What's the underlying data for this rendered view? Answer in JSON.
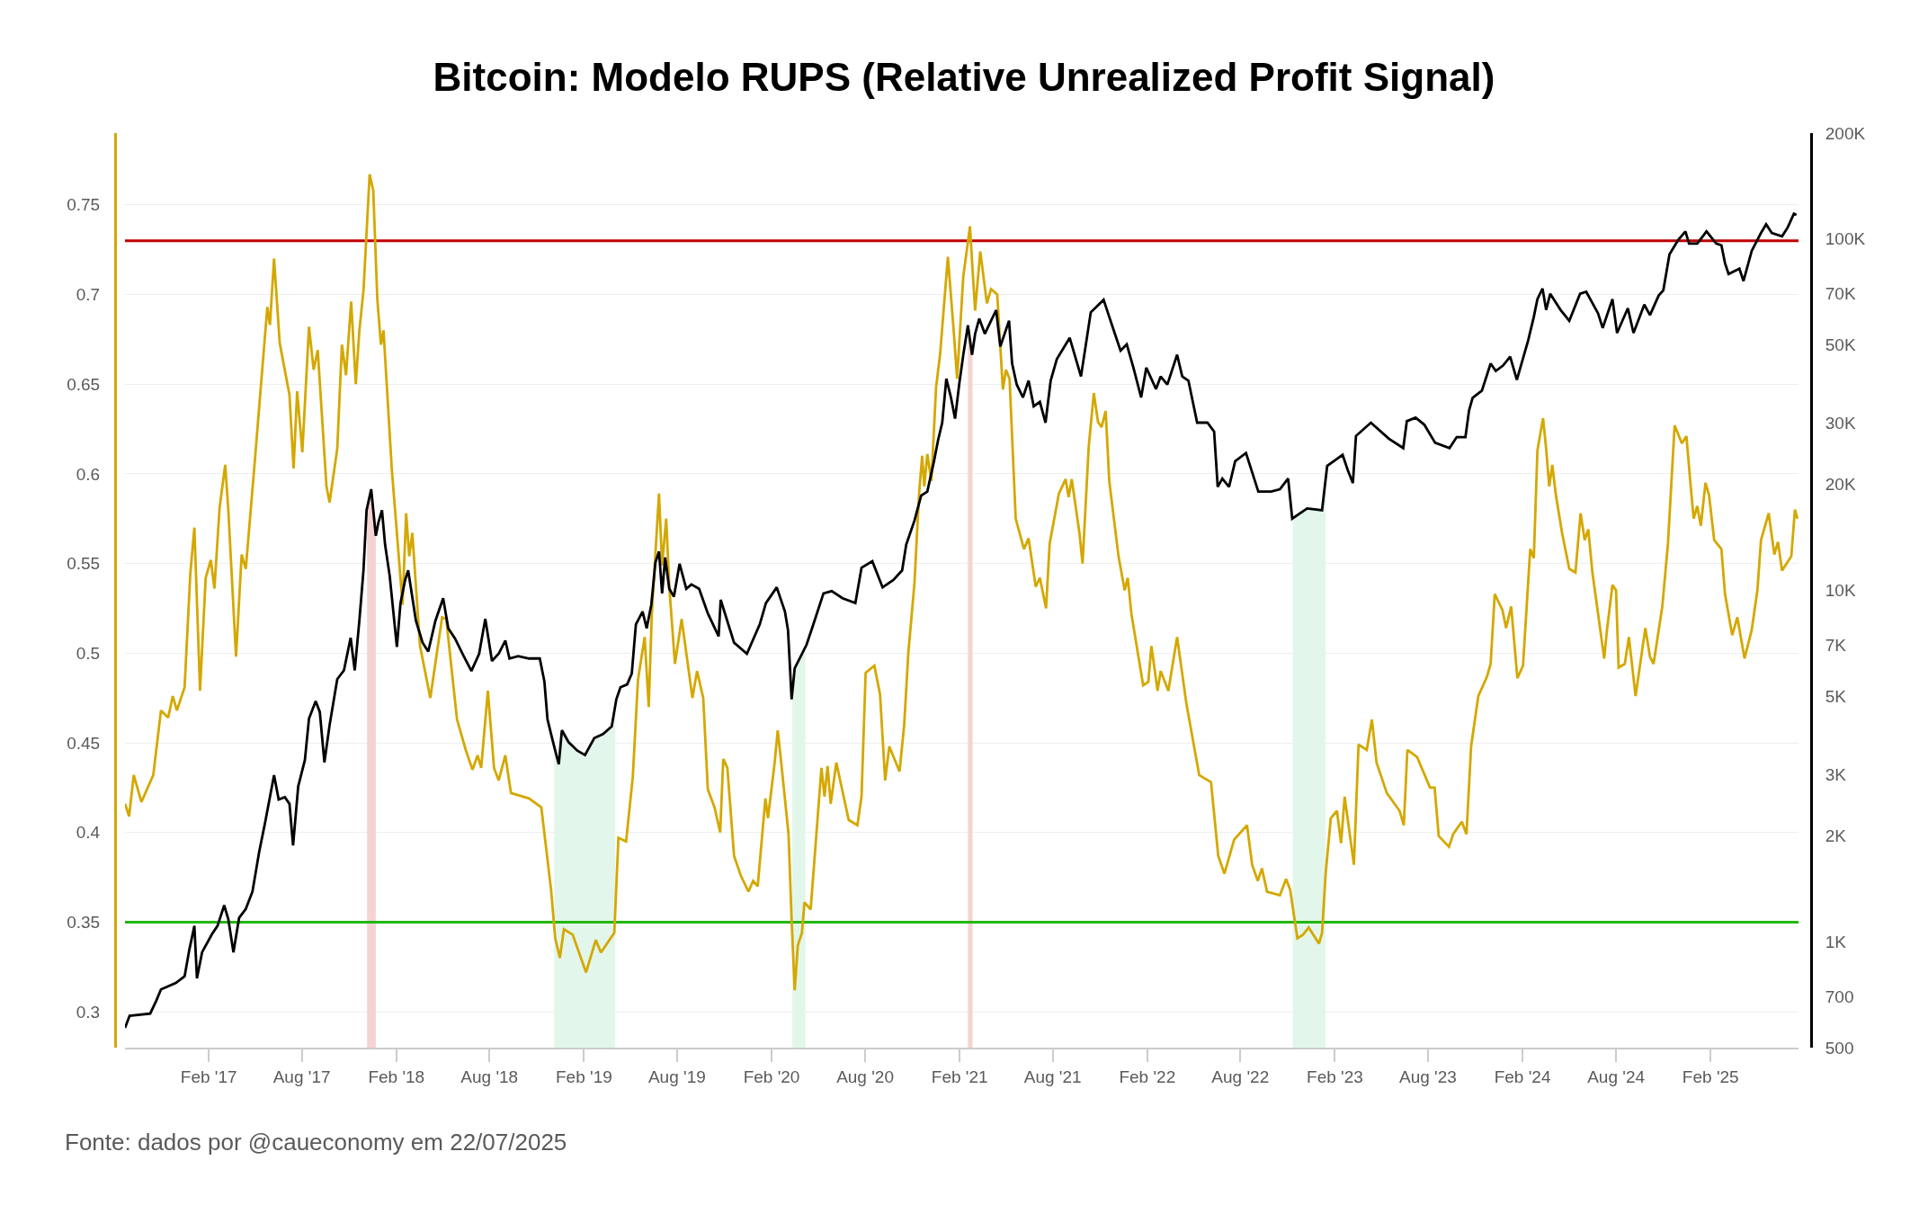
{
  "chart_data": {
    "type": "line",
    "title": "Bitcoin: Modelo RUPS (Relative Unrealized Profit Signal)",
    "annotations": [
      "Fonte: dados por @caueconomy em 22/07/2025"
    ],
    "xlim": [
      "2016-08-22",
      "2025-07-22"
    ],
    "xticks": [
      {
        "value": "2017-02-01",
        "label": "Feb '17"
      },
      {
        "value": "2017-08-01",
        "label": "Aug '17"
      },
      {
        "value": "2018-02-01",
        "label": "Feb '18"
      },
      {
        "value": "2018-08-01",
        "label": "Aug '18"
      },
      {
        "value": "2019-02-01",
        "label": "Feb '19"
      },
      {
        "value": "2019-08-01",
        "label": "Aug '19"
      },
      {
        "value": "2020-02-01",
        "label": "Feb '20"
      },
      {
        "value": "2020-08-01",
        "label": "Aug '20"
      },
      {
        "value": "2021-02-01",
        "label": "Feb '21"
      },
      {
        "value": "2021-08-01",
        "label": "Aug '21"
      },
      {
        "value": "2022-02-01",
        "label": "Feb '22"
      },
      {
        "value": "2022-08-01",
        "label": "Aug '22"
      },
      {
        "value": "2023-02-01",
        "label": "Feb '23"
      },
      {
        "value": "2023-08-01",
        "label": "Aug '23"
      },
      {
        "value": "2024-02-01",
        "label": "Feb '24"
      },
      {
        "value": "2024-08-01",
        "label": "Aug '24"
      },
      {
        "value": "2025-02-01",
        "label": "Feb '25"
      }
    ],
    "ylim": [
      0.28,
      0.79
    ],
    "yticks": [
      0.3,
      0.35,
      0.4,
      0.45,
      0.5,
      0.55,
      0.6,
      0.65,
      0.7,
      0.75
    ],
    "y2lim": [
      500,
      200000
    ],
    "y2ticks": [
      500,
      700,
      {
        "value": 1000,
        "label": "1K"
      },
      {
        "value": 2000,
        "label": "2K"
      },
      {
        "value": 3000,
        "label": "3K"
      },
      {
        "value": 5000,
        "label": "5K"
      },
      {
        "value": 7000,
        "label": "7K"
      },
      {
        "value": 10000,
        "label": "10K"
      },
      {
        "value": 20000,
        "label": "20K"
      },
      {
        "value": 30000,
        "label": "30K"
      },
      {
        "value": 50000,
        "label": "50K"
      },
      {
        "value": 70000,
        "label": "70K"
      },
      {
        "value": 100000,
        "label": "100K"
      },
      {
        "value": 200000,
        "label": "200K"
      }
    ],
    "log": "y2",
    "grid": "y",
    "ref_lines": [
      {
        "axis": "y",
        "value": 0.73,
        "color": "#c00000"
      },
      {
        "axis": "y",
        "value": 0.35,
        "color": "#22b80a"
      }
    ],
    "bands": [
      {
        "axis": "x",
        "from": "2017-12-06",
        "to": "2017-12-23",
        "color": "#f6d3d3"
      },
      {
        "axis": "x",
        "from": "2018-12-05",
        "to": "2019-04-03",
        "color": "#e3f6eb"
      },
      {
        "axis": "x",
        "from": "2020-03-12",
        "to": "2020-04-07",
        "color": "#e3f6eb"
      },
      {
        "axis": "x",
        "from": "2021-02-17",
        "to": "2021-02-26",
        "color": "#f6d3d3"
      },
      {
        "axis": "x",
        "from": "2022-11-11",
        "to": "2023-01-14",
        "color": "#e3f6eb"
      }
    ],
    "series": [
      {
        "color": "#d4a800",
        "x": [
          "2016-08-22",
          "2016-08-30",
          "2016-09-08",
          "2016-09-23",
          "2016-10-16",
          "2016-10-31",
          "2016-11-14",
          "2016-11-23",
          "2016-12-01",
          "2016-12-16",
          "2016-12-27",
          "2017-01-04",
          "2017-01-15",
          "2017-01-26",
          "2017-02-05",
          "2017-02-12",
          "2017-02-22",
          "2017-03-05",
          "2017-03-11",
          "2017-03-26",
          "2017-04-06",
          "2017-04-14",
          "2017-05-01",
          "2017-05-14",
          "2017-05-26",
          "2017-05-31",
          "2017-06-08",
          "2017-06-19",
          "2017-07-08",
          "2017-07-16",
          "2017-07-23",
          "2017-08-02",
          "2017-08-15",
          "2017-08-24",
          "2017-09-01",
          "2017-09-18",
          "2017-09-24",
          "2017-10-09",
          "2017-10-18",
          "2017-10-26",
          "2017-11-05",
          "2017-11-14",
          "2017-11-21",
          "2017-11-29",
          "2017-12-11",
          "2017-12-18",
          "2017-12-26",
          "2018-01-02",
          "2018-01-07",
          "2018-01-23",
          "2018-02-07",
          "2018-02-13",
          "2018-02-20",
          "2018-02-26",
          "2018-03-04",
          "2018-03-19",
          "2018-04-08",
          "2018-05-01",
          "2018-05-09",
          "2018-05-30",
          "2018-06-16",
          "2018-06-29",
          "2018-07-09",
          "2018-07-16",
          "2018-07-29",
          "2018-08-10",
          "2018-08-19",
          "2018-09-01",
          "2018-09-12",
          "2018-10-17",
          "2018-11-10",
          "2018-11-29",
          "2018-12-07",
          "2018-12-16",
          "2018-12-24",
          "2019-01-10",
          "2019-02-05",
          "2019-02-24",
          "2019-03-06",
          "2019-04-01",
          "2019-04-09",
          "2019-04-24",
          "2019-05-07",
          "2019-05-17",
          "2019-05-30",
          "2019-06-07",
          "2019-06-13",
          "2019-06-27",
          "2019-07-03",
          "2019-07-11",
          "2019-07-17",
          "2019-07-28",
          "2019-08-10",
          "2019-08-31",
          "2019-09-09",
          "2019-09-21",
          "2019-09-30",
          "2019-10-13",
          "2019-10-24",
          "2019-10-30",
          "2019-11-07",
          "2019-11-20",
          "2019-12-03",
          "2019-12-18",
          "2019-12-27",
          "2020-01-05",
          "2020-01-20",
          "2020-01-25",
          "2020-02-07",
          "2020-02-13",
          "2020-02-19",
          "2020-03-05",
          "2020-03-11",
          "2020-03-17",
          "2020-03-23",
          "2020-03-31",
          "2020-04-05",
          "2020-04-17",
          "2020-04-25",
          "2020-05-08",
          "2020-05-14",
          "2020-05-20",
          "2020-05-26",
          "2020-06-06",
          "2020-06-30",
          "2020-07-17",
          "2020-07-25",
          "2020-08-02",
          "2020-08-19",
          "2020-08-30",
          "2020-09-09",
          "2020-09-17",
          "2020-10-07",
          "2020-10-16",
          "2020-10-24",
          "2020-11-05",
          "2020-11-14",
          "2020-11-20",
          "2020-11-24",
          "2020-11-30",
          "2020-12-08",
          "2020-12-17",
          "2020-12-25",
          "2021-01-09",
          "2021-01-20",
          "2021-01-27",
          "2021-02-08",
          "2021-02-21",
          "2021-02-26",
          "2021-03-03",
          "2021-03-13",
          "2021-03-26",
          "2021-04-03",
          "2021-04-15",
          "2021-04-26",
          "2021-05-02",
          "2021-05-09",
          "2021-05-21",
          "2021-06-06",
          "2021-06-15",
          "2021-06-29",
          "2021-07-07",
          "2021-07-19",
          "2021-07-26",
          "2021-08-13",
          "2021-08-26",
          "2021-09-01",
          "2021-09-07",
          "2021-09-22",
          "2021-09-28",
          "2021-10-10",
          "2021-10-20",
          "2021-10-28",
          "2021-11-04",
          "2021-11-12",
          "2021-11-19",
          "2021-12-07",
          "2021-12-19",
          "2021-12-25",
          "2022-01-01",
          "2022-01-24",
          "2022-02-03",
          "2022-02-09",
          "2022-02-21",
          "2022-02-27",
          "2022-03-14",
          "2022-03-31",
          "2022-04-18",
          "2022-05-13",
          "2022-06-05",
          "2022-06-19",
          "2022-07-01",
          "2022-07-20",
          "2022-08-14",
          "2022-08-24",
          "2022-09-04",
          "2022-09-12",
          "2022-09-22",
          "2022-10-17",
          "2022-10-29",
          "2022-11-06",
          "2022-11-20",
          "2022-12-01",
          "2022-12-12",
          "2023-01-01",
          "2023-01-07",
          "2023-01-14",
          "2023-01-24",
          "2023-02-05",
          "2023-02-13",
          "2023-02-20",
          "2023-03-10",
          "2023-03-19",
          "2023-04-04",
          "2023-04-14",
          "2023-04-23",
          "2023-05-13",
          "2023-06-07",
          "2023-06-15",
          "2023-06-22",
          "2023-07-11",
          "2023-08-05",
          "2023-08-14",
          "2023-08-22",
          "2023-09-11",
          "2023-09-19",
          "2023-10-06",
          "2023-10-15",
          "2023-10-24",
          "2023-11-07",
          "2023-11-24",
          "2023-12-01",
          "2023-12-09",
          "2023-12-24",
          "2023-12-31",
          "2024-01-10",
          "2024-01-22",
          "2024-02-02",
          "2024-02-16",
          "2024-02-23",
          "2024-03-01",
          "2024-03-12",
          "2024-03-18",
          "2024-03-24",
          "2024-03-30",
          "2024-04-06",
          "2024-04-18",
          "2024-05-02",
          "2024-05-14",
          "2024-05-24",
          "2024-06-01",
          "2024-06-08",
          "2024-06-16",
          "2024-07-09",
          "2024-07-14",
          "2024-07-25",
          "2024-08-01",
          "2024-08-06",
          "2024-08-18",
          "2024-08-26",
          "2024-09-08",
          "2024-09-27",
          "2024-10-06",
          "2024-10-13",
          "2024-10-30",
          "2024-11-10",
          "2024-11-23",
          "2024-12-07",
          "2024-12-16",
          "2024-12-23",
          "2024-12-30",
          "2025-01-06",
          "2025-01-13",
          "2025-01-22",
          "2025-01-29",
          "2025-02-08",
          "2025-02-22",
          "2025-03-01",
          "2025-03-15",
          "2025-03-25",
          "2025-04-08",
          "2025-04-22",
          "2025-05-03",
          "2025-05-10",
          "2025-05-25",
          "2025-06-05",
          "2025-06-12",
          "2025-06-20",
          "2025-07-08",
          "2025-07-15",
          "2025-07-20"
        ],
        "values": [
          0.416,
          0.409,
          0.432,
          0.417,
          0.432,
          0.468,
          0.464,
          0.476,
          0.468,
          0.481,
          0.544,
          0.57,
          0.479,
          0.542,
          0.552,
          0.536,
          0.581,
          0.605,
          0.58,
          0.498,
          0.555,
          0.547,
          0.605,
          0.651,
          0.693,
          0.683,
          0.72,
          0.673,
          0.644,
          0.603,
          0.646,
          0.612,
          0.682,
          0.658,
          0.669,
          0.593,
          0.584,
          0.614,
          0.672,
          0.655,
          0.696,
          0.65,
          0.68,
          0.702,
          0.767,
          0.758,
          0.697,
          0.672,
          0.68,
          0.603,
          0.549,
          0.527,
          0.578,
          0.554,
          0.567,
          0.504,
          0.475,
          0.52,
          0.519,
          0.463,
          0.446,
          0.435,
          0.443,
          0.436,
          0.479,
          0.436,
          0.429,
          0.443,
          0.422,
          0.419,
          0.414,
          0.368,
          0.341,
          0.33,
          0.346,
          0.343,
          0.322,
          0.34,
          0.333,
          0.344,
          0.397,
          0.395,
          0.431,
          0.485,
          0.509,
          0.47,
          0.522,
          0.589,
          0.549,
          0.575,
          0.537,
          0.494,
          0.519,
          0.475,
          0.49,
          0.475,
          0.424,
          0.414,
          0.4,
          0.441,
          0.436,
          0.387,
          0.376,
          0.367,
          0.373,
          0.37,
          0.419,
          0.408,
          0.439,
          0.457,
          0.441,
          0.399,
          0.351,
          0.312,
          0.337,
          0.344,
          0.361,
          0.357,
          0.387,
          0.436,
          0.42,
          0.437,
          0.416,
          0.439,
          0.407,
          0.404,
          0.42,
          0.489,
          0.493,
          0.477,
          0.429,
          0.448,
          0.434,
          0.46,
          0.5,
          0.539,
          0.589,
          0.61,
          0.593,
          0.611,
          0.596,
          0.648,
          0.667,
          0.721,
          0.681,
          0.653,
          0.71,
          0.738,
          0.714,
          0.691,
          0.724,
          0.695,
          0.703,
          0.7,
          0.647,
          0.658,
          0.653,
          0.575,
          0.558,
          0.564,
          0.537,
          0.542,
          0.525,
          0.561,
          0.589,
          0.597,
          0.587,
          0.597,
          0.567,
          0.55,
          0.615,
          0.645,
          0.629,
          0.626,
          0.635,
          0.596,
          0.554,
          0.535,
          0.542,
          0.522,
          0.482,
          0.484,
          0.504,
          0.479,
          0.49,
          0.479,
          0.509,
          0.472,
          0.432,
          0.428,
          0.387,
          0.377,
          0.396,
          0.404,
          0.382,
          0.373,
          0.38,
          0.367,
          0.365,
          0.374,
          0.368,
          0.341,
          0.343,
          0.347,
          0.338,
          0.344,
          0.377,
          0.408,
          0.412,
          0.394,
          0.42,
          0.382,
          0.449,
          0.446,
          0.463,
          0.439,
          0.422,
          0.412,
          0.404,
          0.446,
          0.442,
          0.425,
          0.425,
          0.398,
          0.392,
          0.399,
          0.406,
          0.399,
          0.448,
          0.476,
          0.487,
          0.494,
          0.533,
          0.524,
          0.514,
          0.526,
          0.486,
          0.493,
          0.558,
          0.553,
          0.613,
          0.631,
          0.614,
          0.593,
          0.605,
          0.588,
          0.567,
          0.547,
          0.545,
          0.578,
          0.563,
          0.569,
          0.545,
          0.497,
          0.512,
          0.538,
          0.535,
          0.492,
          0.494,
          0.509,
          0.476,
          0.514,
          0.498,
          0.494,
          0.526,
          0.561,
          0.627,
          0.617,
          0.621,
          0.597,
          0.575,
          0.582,
          0.571,
          0.595,
          0.588,
          0.563,
          0.558,
          0.533,
          0.51,
          0.52,
          0.497,
          0.513,
          0.535,
          0.563,
          0.578,
          0.555,
          0.562,
          0.546,
          0.554,
          0.58,
          0.575
        ]
      },
      {
        "color": "#000000",
        "axis": "y2",
        "x": [
          "2016-08-22",
          "2016-08-31",
          "2016-10-10",
          "2016-10-22",
          "2016-10-31",
          "2016-11-29",
          "2016-12-16",
          "2016-12-25",
          "2017-01-04",
          "2017-01-09",
          "2017-01-19",
          "2017-02-07",
          "2017-02-18",
          "2017-03-03",
          "2017-03-11",
          "2017-03-21",
          "2017-04-01",
          "2017-04-14",
          "2017-04-27",
          "2017-05-10",
          "2017-05-22",
          "2017-06-08",
          "2017-06-17",
          "2017-06-29",
          "2017-07-08",
          "2017-07-15",
          "2017-07-25",
          "2017-08-07",
          "2017-08-15",
          "2017-08-28",
          "2017-09-05",
          "2017-09-14",
          "2017-09-24",
          "2017-10-09",
          "2017-10-22",
          "2017-11-04",
          "2017-11-12",
          "2017-11-21",
          "2017-11-29",
          "2017-12-05",
          "2017-12-14",
          "2017-12-23",
          "2017-12-28",
          "2018-01-04",
          "2018-01-10",
          "2018-01-19",
          "2018-02-02",
          "2018-02-09",
          "2018-02-18",
          "2018-02-24",
          "2018-03-11",
          "2018-03-24",
          "2018-04-04",
          "2018-04-18",
          "2018-05-03",
          "2018-05-13",
          "2018-05-26",
          "2018-06-12",
          "2018-06-27",
          "2018-07-12",
          "2018-07-24",
          "2018-08-06",
          "2018-08-19",
          "2018-09-01",
          "2018-09-09",
          "2018-09-26",
          "2018-10-17",
          "2018-11-07",
          "2018-11-16",
          "2018-11-22",
          "2018-11-29",
          "2018-12-07",
          "2018-12-14",
          "2018-12-20",
          "2019-01-02",
          "2019-01-19",
          "2019-02-03",
          "2019-02-21",
          "2019-03-10",
          "2019-03-27",
          "2019-04-05",
          "2019-04-13",
          "2019-04-26",
          "2019-05-05",
          "2019-05-13",
          "2019-05-26",
          "2019-06-03",
          "2019-06-12",
          "2019-06-20",
          "2019-06-27",
          "2019-07-03",
          "2019-07-09",
          "2019-07-17",
          "2019-07-26",
          "2019-08-06",
          "2019-08-19",
          "2019-08-29",
          "2019-09-13",
          "2019-09-30",
          "2019-10-21",
          "2019-10-25",
          "2019-11-20",
          "2019-12-15",
          "2020-01-09",
          "2020-01-21",
          "2020-02-11",
          "2020-02-27",
          "2020-03-04",
          "2020-03-11",
          "2020-03-17",
          "2020-04-09",
          "2020-04-21",
          "2020-05-12",
          "2020-05-28",
          "2020-06-18",
          "2020-07-13",
          "2020-07-25",
          "2020-08-15",
          "2020-09-04",
          "2020-09-25",
          "2020-10-12",
          "2020-10-20",
          "2020-11-05",
          "2020-11-18",
          "2020-11-30",
          "2020-12-13",
          "2020-12-21",
          "2020-12-29",
          "2021-01-06",
          "2021-01-15",
          "2021-01-23",
          "2021-01-31",
          "2021-02-08",
          "2021-02-17",
          "2021-02-25",
          "2021-03-03",
          "2021-03-11",
          "2021-03-22",
          "2021-04-03",
          "2021-04-13",
          "2021-04-21",
          "2021-05-08",
          "2021-05-14",
          "2021-05-23",
          "2021-06-04",
          "2021-06-15",
          "2021-06-25",
          "2021-07-07",
          "2021-07-18",
          "2021-07-28",
          "2021-08-09",
          "2021-09-03",
          "2021-09-25",
          "2021-10-14",
          "2021-11-08",
          "2021-11-19",
          "2021-11-30",
          "2021-12-11",
          "2021-12-23",
          "2022-01-05",
          "2022-01-20",
          "2022-01-30",
          "2022-02-18",
          "2022-02-27",
          "2022-03-12",
          "2022-03-31",
          "2022-04-10",
          "2022-04-22",
          "2022-05-09",
          "2022-05-29",
          "2022-06-11",
          "2022-06-18",
          "2022-06-27",
          "2022-07-10",
          "2022-07-22",
          "2022-08-12",
          "2022-09-05",
          "2022-09-30",
          "2022-10-17",
          "2022-11-02",
          "2022-11-10",
          "2022-12-09",
          "2023-01-07",
          "2023-01-17",
          "2023-02-16",
          "2023-02-26",
          "2023-03-08",
          "2023-03-14",
          "2023-04-12",
          "2023-05-17",
          "2023-06-14",
          "2023-06-21",
          "2023-07-08",
          "2023-07-25",
          "2023-08-15",
          "2023-09-12",
          "2023-09-26",
          "2023-10-13",
          "2023-10-20",
          "2023-10-27",
          "2023-11-14",
          "2023-12-01",
          "2023-12-11",
          "2023-12-25",
          "2024-01-08",
          "2024-01-21",
          "2024-02-12",
          "2024-02-23",
          "2024-03-01",
          "2024-03-11",
          "2024-03-18",
          "2024-03-26",
          "2024-04-15",
          "2024-05-02",
          "2024-05-23",
          "2024-06-04",
          "2024-06-27",
          "2024-07-06",
          "2024-07-25",
          "2024-08-03",
          "2024-08-24",
          "2024-09-04",
          "2024-09-25",
          "2024-10-06",
          "2024-10-23",
          "2024-11-01",
          "2024-11-13",
          "2024-11-30",
          "2024-12-14",
          "2024-12-21",
          "2025-01-06",
          "2025-01-24",
          "2025-02-12",
          "2025-02-22",
          "2025-03-01",
          "2025-03-08",
          "2025-03-29",
          "2025-04-06",
          "2025-04-22",
          "2025-05-10",
          "2025-05-20",
          "2025-05-31",
          "2025-06-20",
          "2025-07-01",
          "2025-07-13",
          "2025-07-18"
        ],
        "values": [
          569,
          616,
          625,
          681,
          732,
          764,
          798,
          947,
          1110,
          787,
          934,
          1050,
          1110,
          1270,
          1160,
          934,
          1170,
          1240,
          1390,
          1800,
          2200,
          2980,
          2540,
          2580,
          2470,
          1880,
          2770,
          3290,
          4320,
          4840,
          4510,
          3240,
          4130,
          5590,
          5920,
          7330,
          5920,
          8200,
          11400,
          16900,
          19400,
          14300,
          15600,
          16900,
          13500,
          11000,
          6900,
          9200,
          10700,
          11400,
          8200,
          7100,
          6700,
          8200,
          9500,
          7800,
          7300,
          6500,
          5900,
          6600,
          8300,
          6300,
          6600,
          7200,
          6400,
          6500,
          6400,
          6400,
          5500,
          4300,
          3900,
          3500,
          3200,
          4000,
          3700,
          3500,
          3400,
          3800,
          3900,
          4100,
          4900,
          5300,
          5400,
          5800,
          8000,
          8700,
          7800,
          9100,
          12000,
          12900,
          9800,
          12400,
          10100,
          9600,
          11900,
          10100,
          10400,
          10100,
          8600,
          7400,
          9400,
          7100,
          6600,
          8000,
          9200,
          10200,
          8700,
          7700,
          4900,
          6000,
          7000,
          7900,
          9800,
          9950,
          9500,
          9200,
          11600,
          12100,
          10200,
          10700,
          11400,
          13500,
          15800,
          18600,
          19100,
          23300,
          26800,
          30000,
          40000,
          35400,
          30800,
          38500,
          46800,
          56800,
          46800,
          53700,
          59300,
          53700,
          58500,
          62700,
          49400,
          58500,
          44200,
          38500,
          35400,
          39500,
          33400,
          34400,
          30000,
          39500,
          45500,
          52300,
          40600,
          61800,
          67100,
          60000,
          53700,
          48100,
          50100,
          43000,
          35400,
          43000,
          37400,
          40600,
          38500,
          46800,
          40600,
          39500,
          30000,
          30000,
          28300,
          19700,
          20800,
          19700,
          23300,
          24600,
          19100,
          19100,
          19400,
          20800,
          16000,
          17100,
          16900,
          22600,
          24300,
          22000,
          20200,
          27500,
          30000,
          27000,
          25400,
          30300,
          31000,
          29600,
          26300,
          25400,
          27300,
          27300,
          32500,
          35300,
          37000,
          44200,
          42100,
          43600,
          46200,
          39700,
          51400,
          60000,
          67400,
          72200,
          62800,
          69800,
          62800,
          58500,
          69800,
          70700,
          61400,
          55800,
          67400,
          54000,
          63500,
          54000,
          65000,
          60700,
          69000,
          71400,
          90400,
          99300,
          105000,
          97000,
          97000,
          105000,
          97000,
          95900,
          85300,
          79400,
          82300,
          75900,
          92500,
          104000,
          110000,
          104000,
          101700,
          107800,
          118000,
          117000
        ]
      }
    ]
  }
}
